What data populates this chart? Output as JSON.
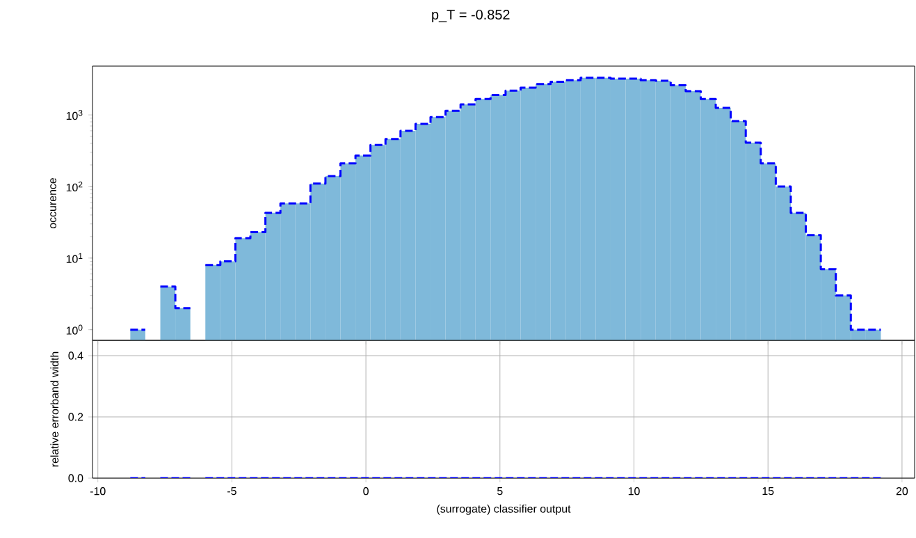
{
  "chart_data": [
    {
      "type": "histogram",
      "title": "p_T = -0.852",
      "ylabel": "occurence",
      "log": true,
      "bins": [
        -8.79,
        -8.23,
        -7.67,
        -7.11,
        -6.55,
        -5.99,
        -5.43,
        -4.87,
        -4.31,
        -3.75,
        -3.19,
        -2.63,
        -2.07,
        -1.51,
        -0.95,
        -0.39,
        0.17,
        0.73,
        1.29,
        1.85,
        2.41,
        2.97,
        3.53,
        4.09,
        4.65,
        5.21,
        5.77,
        6.33,
        6.89,
        7.45,
        8.01,
        8.57,
        9.13,
        9.69,
        10.25,
        10.81,
        11.37,
        11.93,
        12.49,
        13.05,
        13.61,
        14.17,
        14.73,
        15.29,
        15.85,
        16.41,
        16.97,
        17.53,
        18.09,
        18.65,
        19.21
      ],
      "series": [
        {
          "type": "histogram",
          "color": "#7fb9da",
          "values": [
            1,
            null,
            4,
            2,
            null,
            8,
            9,
            19,
            23,
            43,
            58,
            58,
            110,
            140,
            210,
            270,
            380,
            460,
            600,
            750,
            930,
            1140,
            1400,
            1670,
            1900,
            2180,
            2400,
            2700,
            2900,
            3050,
            3300,
            3300,
            3200,
            3200,
            3050,
            3000,
            2600,
            2140,
            1670,
            1250,
            820,
            410,
            210,
            100,
            43,
            21,
            7,
            3,
            1,
            1
          ]
        },
        {
          "type": "line",
          "color": "#0000ff",
          "line_style": "dashed",
          "x": [
            -8.79,
            -8.23,
            null,
            -7.67,
            -7.11,
            -7.11,
            -6.55,
            null,
            -5.99,
            -5.43,
            -5.43,
            -4.87,
            -4.87,
            -4.31,
            -4.31,
            -3.75,
            -3.75,
            -3.19,
            -3.19,
            -2.63,
            -2.63,
            -2.07,
            -2.07,
            -1.51,
            -1.51,
            -0.95,
            -0.95,
            -0.39,
            -0.39,
            0.17,
            0.17,
            0.73,
            0.73,
            1.29,
            1.29,
            1.85,
            1.85,
            2.41,
            2.41,
            2.97,
            2.97,
            3.53,
            3.53,
            4.09,
            4.09,
            4.65,
            4.65,
            5.21,
            5.21,
            5.77,
            5.77,
            6.33,
            6.33,
            6.89,
            6.89,
            7.45,
            7.45,
            8.01,
            8.01,
            8.57,
            8.57,
            9.13,
            9.13,
            9.69,
            9.69,
            10.25,
            10.25,
            10.81,
            10.81,
            11.37,
            11.37,
            11.93,
            11.93,
            12.49,
            12.49,
            13.05,
            13.05,
            13.61,
            13.61,
            14.17,
            14.17,
            14.73,
            14.73,
            15.29,
            15.29,
            15.85,
            15.85,
            16.41,
            16.41,
            16.97,
            16.97,
            17.53,
            17.53,
            18.09,
            18.09,
            18.65,
            18.65,
            19.21
          ],
          "values": [
            1,
            1,
            null,
            4,
            4,
            2,
            2,
            null,
            8,
            8,
            9,
            9,
            19,
            19,
            23,
            23,
            43,
            43,
            58,
            58,
            58,
            58,
            110,
            110,
            140,
            140,
            210,
            210,
            270,
            270,
            380,
            380,
            460,
            460,
            600,
            600,
            750,
            750,
            930,
            930,
            1140,
            1140,
            1400,
            1400,
            1670,
            1670,
            1900,
            1900,
            2180,
            2180,
            2400,
            2400,
            2700,
            2700,
            2900,
            2900,
            3050,
            3050,
            3300,
            3300,
            3300,
            3300,
            3200,
            3200,
            3200,
            3200,
            3050,
            3050,
            3000,
            3000,
            2600,
            2600,
            2140,
            2140,
            1670,
            1670,
            1250,
            1250,
            820,
            820,
            410,
            410,
            210,
            210,
            100,
            100,
            43,
            43,
            21,
            21,
            7,
            7,
            3,
            3,
            1,
            1,
            1,
            1
          ]
        }
      ],
      "xlim": [
        -10.2,
        20.47
      ],
      "xticks": [
        -10,
        -5,
        0,
        5,
        10,
        15,
        20
      ],
      "tick_labels": "y",
      "ylim": [
        0.71,
        4800
      ],
      "yticks": [
        {
          "value": 1,
          "label": "10$^{0}$"
        },
        {
          "value": 10,
          "label": "10$^{1}$"
        },
        {
          "value": 100,
          "label": "10$^{2}$"
        },
        {
          "value": 1000,
          "label": "10$^{3}$"
        }
      ]
    },
    {
      "type": "line",
      "xlabel": "(surrogate) classifier output",
      "ylabel": "relative errorband width",
      "grid": true,
      "x": [
        -8.79,
        -8.23,
        null,
        -7.67,
        -6.55,
        null,
        -5.99,
        19.21
      ],
      "values": [
        0,
        0,
        null,
        0,
        0,
        null,
        0,
        0
      ],
      "color": "#0000ff",
      "line_style": "dashed",
      "xlim": [
        -10.2,
        20.47
      ],
      "xticks": [
        -10,
        -5,
        0,
        5,
        10,
        15,
        20
      ],
      "ylim": [
        0,
        0.45
      ],
      "yticks": [
        {
          "value": 0,
          "label": "0.0"
        },
        0.2,
        0.4
      ]
    }
  ]
}
